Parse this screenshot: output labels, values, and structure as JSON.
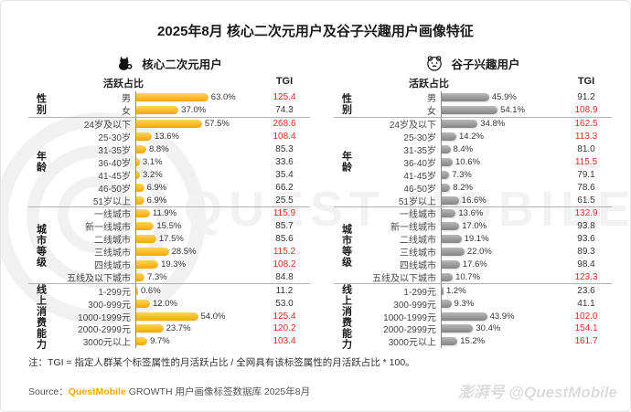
{
  "title": "2025年8月 核心二次元用户及谷子兴趣用户画像特征",
  "note": "注：TGI = 指定人群某个标签属性的月活跃占比 / 全网具有该标签属性的月活跃占比 * 100。",
  "source": {
    "prefix": "Source：",
    "brand": "QuestMobile",
    "rest": " GROWTH 用户画像标签数据库 2025年8月"
  },
  "watermark_center": "QUEST MOBILE",
  "watermark_bottom": "澎湃号 @QuestMobile",
  "colors": {
    "bar_left_top": "#FFD45C",
    "bar_left_bottom": "#F5A800",
    "bar_right_top": "#B9B9B9",
    "bar_right_bottom": "#848484",
    "tgi_high": "#E02A20",
    "brand_orange": "#F7A600"
  },
  "chart_data": [
    {
      "type": "bar",
      "title": "核心二次元用户",
      "icon": "cat-icon",
      "value_header": "活跃占比",
      "tgi_header": "TGI",
      "unit": "%",
      "groups": [
        {
          "label": "性别",
          "rows": [
            {
              "label": "男",
              "value": 63.0,
              "tgi": 125.4
            },
            {
              "label": "女",
              "value": 37.0,
              "tgi": 74.3
            }
          ]
        },
        {
          "label": "年龄",
          "rows": [
            {
              "label": "24岁及以下",
              "value": 57.5,
              "tgi": 268.6
            },
            {
              "label": "25-30岁",
              "value": 13.6,
              "tgi": 108.4
            },
            {
              "label": "31-35岁",
              "value": 8.8,
              "tgi": 85.3
            },
            {
              "label": "36-40岁",
              "value": 3.1,
              "tgi": 33.6
            },
            {
              "label": "41-45岁",
              "value": 3.2,
              "tgi": 35.4
            },
            {
              "label": "46-50岁",
              "value": 6.9,
              "tgi": 66.2
            },
            {
              "label": "51岁以上",
              "value": 6.9,
              "tgi": 25.5
            }
          ]
        },
        {
          "label": "城市等级",
          "rows": [
            {
              "label": "一线城市",
              "value": 11.9,
              "tgi": 115.9
            },
            {
              "label": "新一线城市",
              "value": 15.5,
              "tgi": 85.7
            },
            {
              "label": "二线城市",
              "value": 17.5,
              "tgi": 85.6
            },
            {
              "label": "三线城市",
              "value": 28.5,
              "tgi": 115.2
            },
            {
              "label": "四线城市",
              "value": 19.3,
              "tgi": 108.2
            },
            {
              "label": "五线及以下城市",
              "value": 7.3,
              "tgi": 84.8
            }
          ]
        },
        {
          "label": "线上消费能力",
          "rows": [
            {
              "label": "1-299元",
              "value": 0.6,
              "tgi": 11.2
            },
            {
              "label": "300-999元",
              "value": 12.0,
              "tgi": 53.0
            },
            {
              "label": "1000-1999元",
              "value": 54.0,
              "tgi": 125.4
            },
            {
              "label": "2000-2999元",
              "value": 23.7,
              "tgi": 120.2
            },
            {
              "label": "3000元以上",
              "value": 9.7,
              "tgi": 103.4
            }
          ]
        }
      ]
    },
    {
      "type": "bar",
      "title": "谷子兴趣用户",
      "icon": "bear-icon",
      "value_header": "活跃占比",
      "tgi_header": "TGI",
      "unit": "%",
      "groups": [
        {
          "label": "性别",
          "rows": [
            {
              "label": "男",
              "value": 45.9,
              "tgi": 91.2
            },
            {
              "label": "女",
              "value": 54.1,
              "tgi": 108.9
            }
          ]
        },
        {
          "label": "年龄",
          "rows": [
            {
              "label": "24岁及以下",
              "value": 34.8,
              "tgi": 162.5
            },
            {
              "label": "25-30岁",
              "value": 14.2,
              "tgi": 113.3
            },
            {
              "label": "31-35岁",
              "value": 8.4,
              "tgi": 81.0
            },
            {
              "label": "36-40岁",
              "value": 10.6,
              "tgi": 115.5
            },
            {
              "label": "41-45岁",
              "value": 7.3,
              "tgi": 79.1
            },
            {
              "label": "46-50岁",
              "value": 8.2,
              "tgi": 78.6
            },
            {
              "label": "51岁以上",
              "value": 16.6,
              "tgi": 61.5
            }
          ]
        },
        {
          "label": "城市等级",
          "rows": [
            {
              "label": "一线城市",
              "value": 13.6,
              "tgi": 132.9
            },
            {
              "label": "新一线城市",
              "value": 17.0,
              "tgi": 93.8
            },
            {
              "label": "二线城市",
              "value": 19.1,
              "tgi": 93.6
            },
            {
              "label": "三线城市",
              "value": 22.0,
              "tgi": 89.3
            },
            {
              "label": "四线城市",
              "value": 17.6,
              "tgi": 98.4
            },
            {
              "label": "五线及以下城市",
              "value": 10.7,
              "tgi": 123.3
            }
          ]
        },
        {
          "label": "线上消费能力",
          "rows": [
            {
              "label": "1-299元",
              "value": 1.2,
              "tgi": 23.6
            },
            {
              "label": "300-999元",
              "value": 9.3,
              "tgi": 41.1
            },
            {
              "label": "1000-1999元",
              "value": 43.9,
              "tgi": 102.0
            },
            {
              "label": "2000-2999元",
              "value": 30.4,
              "tgi": 154.1
            },
            {
              "label": "3000元以上",
              "value": 15.2,
              "tgi": 161.7
            }
          ]
        }
      ]
    }
  ]
}
